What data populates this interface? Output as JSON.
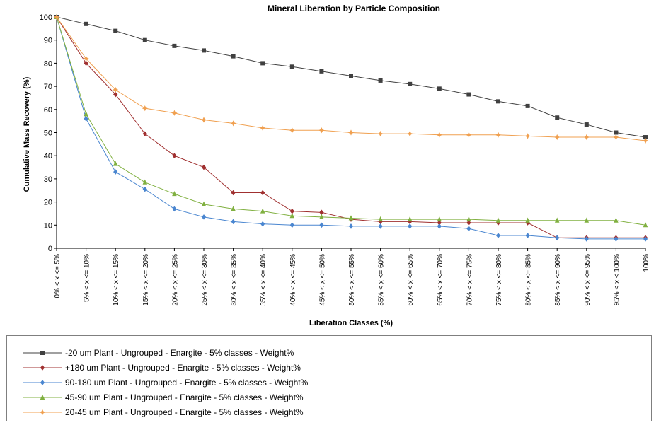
{
  "chart_data": {
    "type": "line",
    "title": "Mineral Liberation by Particle Composition",
    "xlabel": "Liberation Classes (%)",
    "ylabel": "Cumulative Mass Recovery (%)",
    "ylim": [
      0,
      100
    ],
    "yticks": [
      0,
      10,
      20,
      30,
      40,
      50,
      60,
      70,
      80,
      90,
      100
    ],
    "grid": false,
    "legend_position": "bottom",
    "categories": [
      "0% < x <= 5%",
      "5% < x <= 10%",
      "10% < x <= 15%",
      "15% < x <= 20%",
      "20% < x <= 25%",
      "25% < x <= 30%",
      "30% < x <= 35%",
      "35% < x <= 40%",
      "40% < x <= 45%",
      "45% < x <= 50%",
      "50% < x <= 55%",
      "55% < x <= 60%",
      "60% < x <= 65%",
      "65% < x <= 70%",
      "70% < x <= 75%",
      "75% < x <= 80%",
      "80% < x <= 85%",
      "85% < x <= 90%",
      "90% < x <= 95%",
      "95% < x < 100%",
      "100%"
    ],
    "series": [
      {
        "name": "-20 um Plant - Ungrouped - Enargite - 5% classes - Weight%",
        "color": "#404040",
        "marker": "square",
        "values": [
          100,
          97,
          94,
          90,
          87.5,
          85.5,
          83,
          80,
          78.5,
          76.5,
          74.5,
          72.5,
          71,
          69,
          66.5,
          63.5,
          61.5,
          56.5,
          53.5,
          50,
          48
        ]
      },
      {
        "name": "+180 um Plant - Ungrouped - Enargite - 5% classes - Weight%",
        "color": "#a03030",
        "marker": "diamond",
        "values": [
          100,
          80,
          66.5,
          49.5,
          40,
          35,
          24,
          24,
          16,
          15.5,
          12.5,
          11.5,
          11.5,
          11,
          11,
          11,
          11,
          4.5,
          4.5,
          4.5,
          4.5
        ]
      },
      {
        "name": "90-180 um Plant - Ungrouped - Enargite - 5% classes - Weight%",
        "color": "#4a86d0",
        "marker": "diamond",
        "values": [
          100,
          56,
          33,
          25.5,
          17,
          13.5,
          11.5,
          10.5,
          10,
          10,
          9.5,
          9.5,
          9.5,
          9.5,
          8.5,
          5.5,
          5.5,
          4.5,
          4,
          4,
          4
        ]
      },
      {
        "name": "45-90 um Plant - Ungrouped - Enargite - 5% classes - Weight%",
        "color": "#80b040",
        "marker": "triangle",
        "values": [
          100,
          58,
          36.5,
          28.5,
          23.5,
          19,
          17,
          16,
          14,
          13.5,
          13,
          12.5,
          12.5,
          12.5,
          12.5,
          12,
          12,
          12,
          12,
          12,
          10
        ]
      },
      {
        "name": "20-45 um Plant - Ungrouped - Enargite - 5% classes - Weight%",
        "color": "#f0a050",
        "marker": "star",
        "values": [
          100,
          82,
          68.5,
          60.5,
          58.5,
          55.5,
          54,
          52,
          51,
          51,
          50,
          49.5,
          49.5,
          49,
          49,
          49,
          48.5,
          48,
          48,
          48,
          46.5
        ]
      }
    ]
  }
}
